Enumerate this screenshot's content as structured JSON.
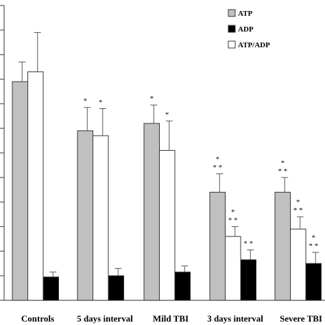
{
  "chart_data": {
    "type": "bar",
    "categories": [
      "Controls",
      "5 days interval",
      "Mild TBI",
      "3 days interval",
      "Severe TBI"
    ],
    "ylim": [
      0,
      12
    ],
    "y_ticks": [
      0,
      1,
      2,
      3,
      4,
      5,
      6,
      7,
      8,
      9,
      10,
      11,
      12
    ],
    "grid": false,
    "legend_position": "top-right",
    "series": [
      {
        "name": "ATP",
        "fill": "#c0c0c0",
        "values": [
          8.9,
          6.9,
          7.2,
          4.4,
          4.4
        ],
        "errors": [
          0.8,
          0.95,
          0.75,
          0.75,
          0.6
        ],
        "significance": [
          "",
          "*",
          "*",
          "*\n* *",
          "*\n* *"
        ]
      },
      {
        "name": "ADP",
        "fill": "#000000",
        "values": [
          0.95,
          1.0,
          1.15,
          1.65,
          1.5
        ],
        "errors": [
          0.2,
          0.3,
          0.25,
          0.4,
          0.45
        ],
        "significance": [
          "",
          "",
          "",
          "* *",
          "*\n* *"
        ]
      },
      {
        "name": "ATP/ADP",
        "fill": "#ffffff",
        "values": [
          9.3,
          6.7,
          6.1,
          2.6,
          2.9
        ],
        "errors": [
          1.6,
          1.1,
          1.2,
          0.4,
          0.5
        ],
        "significance": [
          "",
          "*",
          "*",
          "*\n* *",
          "*\n* *"
        ]
      }
    ]
  }
}
